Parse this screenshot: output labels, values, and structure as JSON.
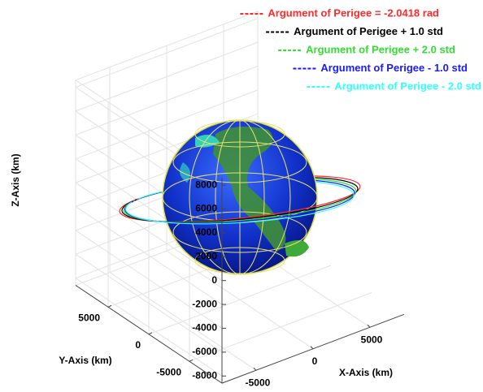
{
  "chart_data": {
    "type": "orbit3d",
    "xlabel": "X-Axis (km)",
    "ylabel": "Y-Axis (km)",
    "zlabel": "Z-Axis (km)",
    "xlim": [
      -8000,
      8000
    ],
    "ylim": [
      -9000,
      9000
    ],
    "zlim": [
      -8600,
      8600
    ],
    "xticks": [
      -5000,
      0,
      5000
    ],
    "yticks": [
      -5000,
      0,
      5000
    ],
    "zticks": [
      -8000,
      -6000,
      -4000,
      -2000,
      0,
      2000,
      4000,
      6000,
      8000
    ],
    "grid": true,
    "series": [
      {
        "name": "Argument of Perigee = -2.0418 rad",
        "color": "#ff2a2a"
      },
      {
        "name": "Argument of Perigee + 1.0 std",
        "color": "#000000"
      },
      {
        "name": "Argument of Perigee + 2.0 std",
        "color": "#33dd33"
      },
      {
        "name": "Argument of Perigee - 1.0 std",
        "color": "#1a1aff"
      },
      {
        "name": "Argument of Perigee - 2.0 std",
        "color": "#33ffff"
      }
    ]
  }
}
